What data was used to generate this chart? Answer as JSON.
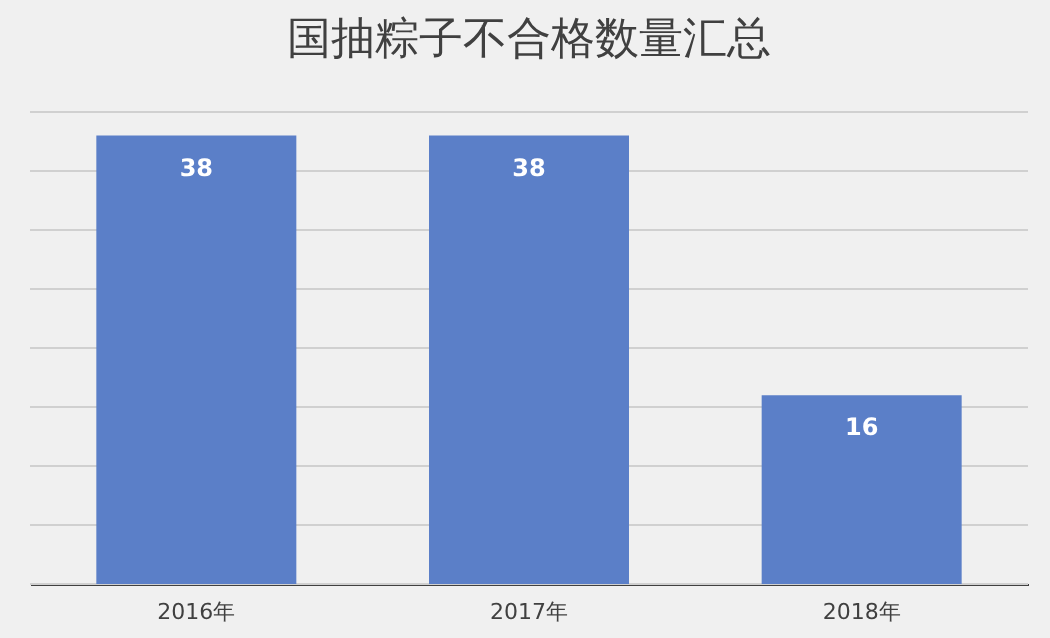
{
  "chart_data": {
    "type": "bar",
    "title": "国抽粽子不合格数量汇总",
    "categories": [
      "2016年",
      "2017年",
      "2018年"
    ],
    "values": [
      38,
      38,
      16
    ],
    "color": "#5b7fc8",
    "data_labels": true,
    "ylim": [
      0,
      40
    ],
    "yticks": [
      {
        "value": 0,
        "label": null
      },
      {
        "value": 5,
        "label": null
      },
      {
        "value": 10,
        "label": null
      },
      {
        "value": 15,
        "label": null
      },
      {
        "value": 20,
        "label": null
      },
      {
        "value": 25,
        "label": null
      },
      {
        "value": 30,
        "label": null
      },
      {
        "value": 35,
        "label": null
      },
      {
        "value": 40,
        "label": null
      }
    ],
    "tick_labels": "x",
    "grid": "y"
  }
}
